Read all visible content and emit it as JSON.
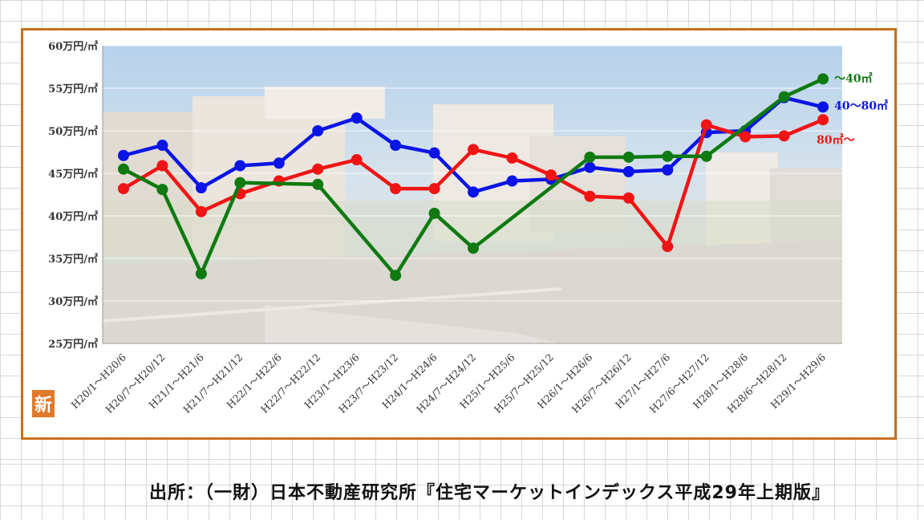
{
  "source_text": "出所：（一財）日本不動産研究所『住宅マーケットインデックス平成29年上期版』",
  "badge_text": "新",
  "chart_data": {
    "type": "line",
    "title": "",
    "xlabel": "",
    "ylabel": "",
    "ylim": [
      25,
      60
    ],
    "y_ticks": [
      {
        "value": 60,
        "label": "60万円/㎡"
      },
      {
        "value": 55,
        "label": "55万円/㎡"
      },
      {
        "value": 50,
        "label": "50万円/㎡"
      },
      {
        "value": 45,
        "label": "45万円/㎡"
      },
      {
        "value": 40,
        "label": "40万円/㎡"
      },
      {
        "value": 35,
        "label": "35万円/㎡"
      },
      {
        "value": 30,
        "label": "30万円/㎡"
      },
      {
        "value": 25,
        "label": "25万円/㎡"
      }
    ],
    "categories": [
      "H20/1～H20/6",
      "H20/7～H20/12",
      "H21/1～H21/6",
      "H21/7～H21/12",
      "H22/1～H22/6",
      "H22/7～H22/12",
      "H23/1～H23/6",
      "H23/7～H23/12",
      "H24/1～H24/6",
      "H24/7～H24/12",
      "H25/1～H25/6",
      "H25/7～H25/12",
      "H26/1～H26/6",
      "H26/7～H26/12",
      "H27/1～H27/6",
      "H27/6～H27/12",
      "H28/1～H28/6",
      "H28/6～H28/12",
      "H29/1～H29/6"
    ],
    "grid": true,
    "background": "photo of a city plaza (faded)",
    "series": [
      {
        "name": "40～80㎡",
        "color": "#0a14e6",
        "values": [
          47.1,
          48.3,
          43.3,
          45.9,
          46.2,
          50.0,
          51.5,
          48.3,
          47.4,
          42.8,
          44.1,
          44.3,
          45.7,
          45.2,
          45.4,
          49.8,
          50.0,
          53.9,
          52.8
        ]
      },
      {
        "name": "80㎡～",
        "color": "#f01414",
        "values": [
          43.2,
          45.9,
          40.5,
          42.6,
          44.1,
          45.5,
          46.6,
          43.2,
          43.2,
          47.8,
          46.8,
          44.8,
          42.3,
          42.1,
          36.4,
          50.7,
          49.3,
          49.4,
          51.3
        ]
      },
      {
        "name": "～40㎡",
        "color": "#0e7a10",
        "values": [
          45.5,
          43.1,
          33.2,
          43.9,
          null,
          43.7,
          null,
          33.0,
          40.3,
          36.2,
          null,
          null,
          46.9,
          46.9,
          47.0,
          47.0,
          null,
          54.0,
          56.1
        ]
      }
    ]
  }
}
